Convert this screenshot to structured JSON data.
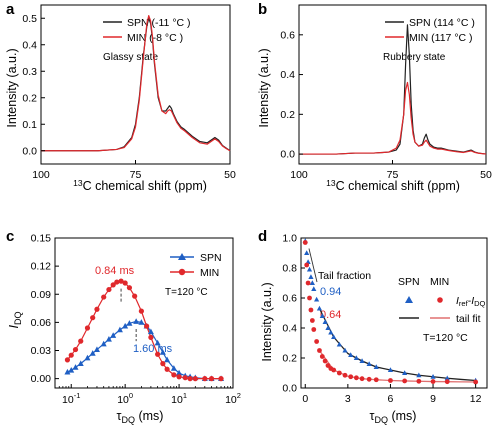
{
  "panel_letters": {
    "a": "a",
    "b": "b",
    "c": "c",
    "d": "d"
  },
  "panel_a": {
    "ylabel": "Intensity (a.u.)",
    "xlabel_prefix": "13",
    "xlabel_rest": "C chemical shift (ppm)",
    "state_label": "Glassy state",
    "legend": [
      "SPN (-11 °C )",
      "MIN (-8 °C )"
    ]
  },
  "panel_b": {
    "ylabel": "Intensity (a.u.)",
    "xlabel_prefix": "13",
    "xlabel_rest": "C chemical shift (ppm)",
    "state_label": "Rubbery state",
    "legend": [
      "SPN (114 °C )",
      "MIN (117 °C )"
    ]
  },
  "panel_c": {
    "ylabel_main": "I",
    "ylabel_sub": "DQ",
    "xlabel_main": "τ",
    "xlabel_sub": "DQ",
    "xlabel_unit": " (ms)",
    "temp_label": "T=120 °C",
    "legend": [
      "SPN",
      "MIN"
    ],
    "annotation_min": "0.84 ms",
    "annotation_spn": "1.60 ms"
  },
  "panel_d": {
    "ylabel": "Intensity (a.u.)",
    "xlabel_main": "τ",
    "xlabel_sub": "DQ",
    "xlabel_unit": " (ms)",
    "tail_fraction_label": "Tail fraction",
    "tail_spn": "0.94",
    "tail_min": "0.64",
    "legend_head_spn": "SPN",
    "legend_head_min": "MIN",
    "legend_iref": "I",
    "legend_iref_sub": "ref",
    "legend_minus": "-",
    "legend_idq": "I",
    "legend_idq_sub": "DQ",
    "legend_tailfit": "tail fit",
    "temp_label": "T=120 °C"
  },
  "colors": {
    "spn": "#1f5fc4",
    "min": "#e0282c",
    "black": "#222222",
    "fit_min": "#e07070"
  },
  "chart_data": [
    {
      "type": "line",
      "panel": "a",
      "xlabel": "13C chemical shift (ppm)",
      "ylabel": "Intensity (a.u.)",
      "xlim": [
        100,
        50
      ],
      "ylim": [
        -0.05,
        0.55
      ],
      "xticks": [
        50,
        75,
        100
      ],
      "yticks": [
        0.0,
        0.1,
        0.2,
        0.3,
        0.4,
        0.5
      ],
      "series": [
        {
          "name": "SPN (-11 °C )",
          "x": [
            100,
            95,
            90,
            85,
            80,
            78,
            76,
            75,
            74,
            73,
            72,
            71.5,
            71,
            70.5,
            70,
            69,
            68,
            67,
            66.5,
            66,
            65.5,
            65,
            64,
            63,
            62,
            60,
            58,
            56,
            55,
            54,
            53,
            52,
            51,
            50
          ],
          "y": [
            0.0,
            0.0,
            0.0,
            0.0,
            0.005,
            0.015,
            0.05,
            0.1,
            0.2,
            0.35,
            0.47,
            0.5,
            0.48,
            0.42,
            0.33,
            0.2,
            0.15,
            0.15,
            0.16,
            0.17,
            0.16,
            0.14,
            0.11,
            0.09,
            0.08,
            0.055,
            0.035,
            0.03,
            0.04,
            0.05,
            0.04,
            0.02,
            0.01,
            0.0
          ]
        },
        {
          "name": "MIN (-8 °C )",
          "x": [
            100,
            95,
            90,
            85,
            80,
            78,
            76,
            75,
            74,
            73,
            72,
            71.5,
            71,
            70.5,
            70,
            69,
            68,
            67,
            66.5,
            66,
            65.5,
            65,
            64,
            63,
            62,
            60,
            58,
            56,
            55,
            54,
            53,
            52,
            51,
            50
          ],
          "y": [
            0.0,
            0.0,
            0.0,
            0.0,
            0.005,
            0.012,
            0.045,
            0.09,
            0.19,
            0.34,
            0.48,
            0.51,
            0.49,
            0.43,
            0.34,
            0.21,
            0.15,
            0.14,
            0.15,
            0.155,
            0.15,
            0.135,
            0.105,
            0.085,
            0.075,
            0.05,
            0.03,
            0.025,
            0.035,
            0.045,
            0.035,
            0.018,
            0.008,
            0.0
          ]
        }
      ]
    },
    {
      "type": "line",
      "panel": "b",
      "xlabel": "13C chemical shift (ppm)",
      "ylabel": "Intensity (a.u.)",
      "xlim": [
        100,
        50
      ],
      "ylim": [
        -0.05,
        0.75
      ],
      "xticks": [
        50,
        75,
        100
      ],
      "yticks": [
        0.0,
        0.2,
        0.4,
        0.6
      ],
      "series": [
        {
          "name": "SPN (114 °C )",
          "x": [
            100,
            95,
            90,
            85,
            80,
            76,
            74,
            73,
            72,
            71.5,
            71,
            70.5,
            70,
            69.5,
            69,
            68,
            67,
            66.5,
            66,
            65.5,
            65,
            64,
            63,
            62,
            60,
            58,
            56,
            55,
            54,
            53,
            52,
            50
          ],
          "y": [
            0.0,
            0.0,
            0.0,
            0.005,
            0.005,
            0.01,
            0.02,
            0.05,
            0.2,
            0.45,
            0.65,
            0.5,
            0.25,
            0.12,
            0.06,
            0.04,
            0.05,
            0.08,
            0.1,
            0.07,
            0.05,
            0.035,
            0.03,
            0.03,
            0.02,
            0.015,
            0.01,
            0.015,
            0.02,
            0.01,
            0.005,
            0.0
          ]
        },
        {
          "name": "MIN (117 °C )",
          "x": [
            100,
            95,
            90,
            85,
            80,
            76,
            74,
            73,
            72,
            71.5,
            71,
            70.5,
            70,
            69.5,
            69,
            68,
            67,
            66.5,
            66,
            65.5,
            65,
            64,
            63,
            62,
            60,
            58,
            56,
            55,
            54,
            53,
            52,
            50
          ],
          "y": [
            0.0,
            0.0,
            0.0,
            0.005,
            0.005,
            0.01,
            0.03,
            0.07,
            0.2,
            0.32,
            0.36,
            0.3,
            0.18,
            0.1,
            0.06,
            0.04,
            0.045,
            0.06,
            0.07,
            0.055,
            0.04,
            0.03,
            0.025,
            0.025,
            0.018,
            0.012,
            0.008,
            0.012,
            0.016,
            0.008,
            0.004,
            0.0
          ]
        }
      ]
    },
    {
      "type": "line",
      "panel": "c",
      "xlabel": "τDQ (ms)",
      "ylabel": "IDQ",
      "xscale": "log",
      "xlim": [
        0.05,
        100
      ],
      "ylim": [
        -0.01,
        0.15
      ],
      "xticks": [
        0.1,
        1,
        10,
        100
      ],
      "xticklabels": [
        "10-1",
        "100",
        "101",
        "102"
      ],
      "yticks": [
        0.0,
        0.03,
        0.06,
        0.09,
        0.12,
        0.15
      ],
      "series": [
        {
          "name": "SPN",
          "x": [
            0.085,
            0.1,
            0.12,
            0.15,
            0.2,
            0.25,
            0.3,
            0.4,
            0.5,
            0.6,
            0.8,
            1.0,
            1.2,
            1.6,
            2.0,
            2.5,
            3.0,
            4.0,
            5.0,
            6.0,
            8.0,
            10,
            13,
            16,
            20,
            30,
            40,
            60
          ],
          "y": [
            0.007,
            0.009,
            0.012,
            0.016,
            0.022,
            0.027,
            0.031,
            0.037,
            0.042,
            0.046,
            0.052,
            0.056,
            0.059,
            0.061,
            0.06,
            0.056,
            0.05,
            0.038,
            0.028,
            0.02,
            0.011,
            0.006,
            0.003,
            0.002,
            0.001,
            0.0,
            0.0,
            0.0
          ]
        },
        {
          "name": "MIN",
          "x": [
            0.085,
            0.1,
            0.12,
            0.15,
            0.2,
            0.25,
            0.3,
            0.4,
            0.5,
            0.6,
            0.7,
            0.84,
            1.0,
            1.2,
            1.5,
            2.0,
            2.5,
            3.0,
            4.0,
            5.0,
            6.0,
            8.0,
            10,
            13,
            16,
            20,
            30,
            40,
            60
          ],
          "y": [
            0.02,
            0.025,
            0.031,
            0.04,
            0.054,
            0.065,
            0.074,
            0.087,
            0.095,
            0.1,
            0.103,
            0.104,
            0.102,
            0.097,
            0.088,
            0.072,
            0.056,
            0.044,
            0.026,
            0.016,
            0.01,
            0.004,
            0.002,
            0.001,
            0.0,
            0.0,
            0.0,
            0.0,
            0.0
          ]
        }
      ],
      "annotations": [
        {
          "label": "0.84 ms",
          "x": 0.84
        },
        {
          "label": "1.60 ms",
          "x": 1.6
        }
      ]
    },
    {
      "type": "scatter",
      "panel": "d",
      "xlabel": "τDQ (ms)",
      "ylabel": "Intensity (a.u.)",
      "xlim": [
        -0.3,
        12.8
      ],
      "ylim": [
        0.0,
        1.0
      ],
      "xticks": [
        0,
        3,
        6,
        9,
        12
      ],
      "yticks": [
        0.0,
        0.2,
        0.4,
        0.6,
        0.8,
        1.0
      ],
      "series": [
        {
          "name": "SPN Iref-IDQ",
          "x": [
            0.0,
            0.1,
            0.2,
            0.3,
            0.4,
            0.5,
            0.6,
            0.8,
            1.0,
            1.2,
            1.4,
            1.6,
            1.8,
            2.0,
            2.4,
            2.8,
            3.2,
            3.6,
            4.0,
            4.5,
            5.0,
            6.0,
            7.0,
            8.0,
            9.0,
            10.0,
            12.0
          ],
          "y": [
            0.98,
            0.9,
            0.84,
            0.79,
            0.74,
            0.7,
            0.66,
            0.59,
            0.53,
            0.48,
            0.44,
            0.4,
            0.37,
            0.34,
            0.29,
            0.25,
            0.22,
            0.2,
            0.18,
            0.16,
            0.14,
            0.12,
            0.1,
            0.085,
            0.075,
            0.065,
            0.05
          ]
        },
        {
          "name": "MIN Iref-IDQ",
          "x": [
            0.0,
            0.1,
            0.2,
            0.3,
            0.4,
            0.5,
            0.6,
            0.8,
            1.0,
            1.2,
            1.4,
            1.6,
            1.8,
            2.0,
            2.4,
            2.8,
            3.2,
            3.6,
            4.0,
            4.5,
            5.0,
            6.0,
            7.0,
            8.0,
            9.0,
            10.0,
            12.0
          ],
          "y": [
            0.97,
            0.82,
            0.7,
            0.6,
            0.52,
            0.45,
            0.39,
            0.31,
            0.25,
            0.21,
            0.18,
            0.15,
            0.13,
            0.12,
            0.1,
            0.085,
            0.075,
            0.068,
            0.062,
            0.058,
            0.055,
            0.05,
            0.047,
            0.045,
            0.043,
            0.042,
            0.04
          ]
        },
        {
          "name": "SPN tail fit",
          "x": [
            1.0,
            2.0,
            3.0,
            4.0,
            5.0,
            6.0,
            7.0,
            8.0,
            9.0,
            10.0,
            11.0,
            12.0
          ],
          "y": [
            0.53,
            0.34,
            0.23,
            0.18,
            0.14,
            0.12,
            0.1,
            0.085,
            0.075,
            0.065,
            0.057,
            0.05
          ]
        },
        {
          "name": "MIN tail fit",
          "x": [
            1.0,
            2.0,
            3.0,
            4.0,
            5.0,
            6.0,
            7.0,
            8.0,
            9.0,
            10.0,
            11.0,
            12.0
          ],
          "y": [
            0.25,
            0.12,
            0.078,
            0.062,
            0.055,
            0.05,
            0.047,
            0.045,
            0.043,
            0.042,
            0.041,
            0.04
          ]
        }
      ]
    }
  ]
}
